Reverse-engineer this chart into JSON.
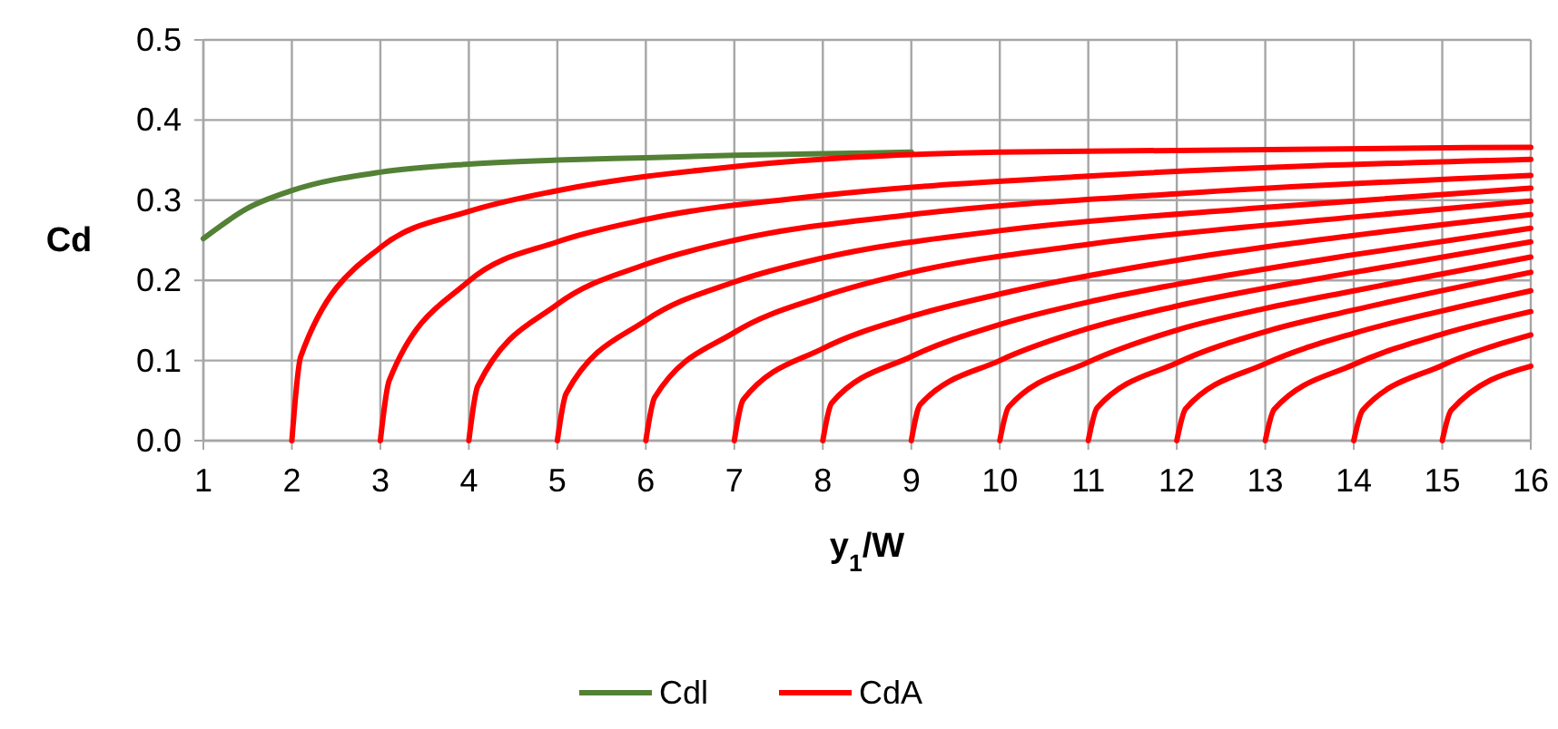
{
  "chart_data": {
    "type": "line",
    "xlabel": "y$_{1}$/W",
    "ylabel": "Cd",
    "xlim": [
      1,
      16
    ],
    "xticks": [
      1,
      2,
      3,
      4,
      5,
      6,
      7,
      8,
      9,
      10,
      11,
      12,
      13,
      14,
      15,
      16
    ],
    "ylim": [
      0,
      0.5
    ],
    "yticks": [
      {
        "value": 0,
        "label": "0.0"
      },
      {
        "value": 0.1,
        "label": "0.1"
      },
      {
        "value": 0.2,
        "label": "0.2"
      },
      {
        "value": 0.3,
        "label": "0.3"
      },
      {
        "value": 0.4,
        "label": "0.4"
      },
      {
        "value": 0.5,
        "label": "0.5"
      }
    ],
    "grid": true,
    "legend": "bottom",
    "marker": "none",
    "line_style": "solid",
    "series": [
      {
        "name": "Cdl",
        "color": "#538135",
        "x": [
          1,
          1.5,
          2,
          3,
          4,
          5,
          6,
          7,
          8,
          9
        ],
        "values": [
          0.252,
          0.29,
          0.312,
          0.335,
          0.345,
          0.35,
          0.353,
          0.356,
          0.358,
          0.36
        ]
      },
      {
        "name": "CdA",
        "color": "#ff0000",
        "x": [
          2,
          2.1,
          3,
          4,
          5,
          7,
          10,
          16
        ],
        "values": [
          0,
          0.105,
          0.241,
          0.286,
          0.312,
          0.342,
          0.36,
          0.366
        ]
      },
      {
        "color": "#ff0000",
        "x": [
          3,
          3.1,
          4,
          5,
          6,
          8,
          11,
          16
        ],
        "values": [
          0,
          0.075,
          0.199,
          0.248,
          0.276,
          0.306,
          0.33,
          0.351
        ]
      },
      {
        "color": "#ff0000",
        "x": [
          4,
          4.1,
          5,
          6,
          7,
          9,
          12,
          16
        ],
        "values": [
          0,
          0.068,
          0.17,
          0.22,
          0.25,
          0.282,
          0.308,
          0.331
        ]
      },
      {
        "color": "#ff0000",
        "x": [
          5,
          5.1,
          6,
          7,
          8,
          10,
          13,
          16
        ],
        "values": [
          0,
          0.059,
          0.15,
          0.198,
          0.228,
          0.262,
          0.291,
          0.315
        ]
      },
      {
        "color": "#ff0000",
        "x": [
          6,
          6.1,
          7,
          8,
          9,
          11,
          14,
          16
        ],
        "values": [
          0,
          0.054,
          0.135,
          0.18,
          0.21,
          0.245,
          0.279,
          0.299
        ]
      },
      {
        "color": "#ff0000",
        "x": [
          7,
          7.1,
          8,
          9,
          10,
          12,
          14,
          16
        ],
        "values": [
          0,
          0.051,
          0.115,
          0.155,
          0.183,
          0.225,
          0.256,
          0.282
        ]
      },
      {
        "color": "#ff0000",
        "x": [
          8,
          8.1,
          9,
          10,
          11,
          12,
          14,
          16
        ],
        "values": [
          0,
          0.047,
          0.105,
          0.145,
          0.173,
          0.195,
          0.232,
          0.265
        ]
      },
      {
        "color": "#ff0000",
        "x": [
          9,
          9.1,
          10,
          11,
          12,
          14,
          16
        ],
        "values": [
          0,
          0.045,
          0.1,
          0.14,
          0.168,
          0.21,
          0.248
        ]
      },
      {
        "color": "#ff0000",
        "x": [
          10,
          10.1,
          11,
          12,
          13,
          14,
          16
        ],
        "values": [
          0,
          0.042,
          0.098,
          0.138,
          0.165,
          0.187,
          0.229
        ]
      },
      {
        "color": "#ff0000",
        "x": [
          11,
          11.1,
          12,
          13,
          14,
          16
        ],
        "values": [
          0,
          0.041,
          0.097,
          0.136,
          0.163,
          0.21
        ]
      },
      {
        "color": "#ff0000",
        "x": [
          12,
          12.1,
          13,
          14,
          15,
          16
        ],
        "values": [
          0,
          0.04,
          0.096,
          0.134,
          0.162,
          0.187
        ]
      },
      {
        "color": "#ff0000",
        "x": [
          13,
          13.1,
          14,
          15,
          16
        ],
        "values": [
          0,
          0.039,
          0.095,
          0.133,
          0.161
        ]
      },
      {
        "color": "#ff0000",
        "x": [
          14,
          14.1,
          15,
          16
        ],
        "values": [
          0,
          0.038,
          0.094,
          0.132
        ]
      },
      {
        "color": "#ff0000",
        "x": [
          15,
          15.1,
          16
        ],
        "values": [
          0,
          0.038,
          0.093
        ]
      }
    ]
  }
}
